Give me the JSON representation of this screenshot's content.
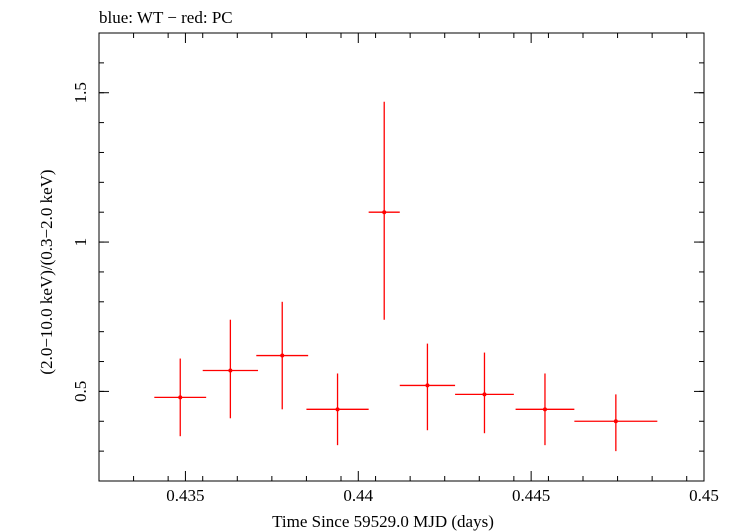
{
  "chart_data": {
    "type": "scatter",
    "title": "blue: WT − red: PC",
    "xlabel": "Time Since 59529.0 MJD (days)",
    "ylabel": "(2.0−10.0 keV)/(0.3−2.0 keV)",
    "xlim": [
      0.4325,
      0.45
    ],
    "ylim": [
      0.2,
      1.7
    ],
    "x_ticks": [
      {
        "value": 0.435,
        "label": "0.435"
      },
      {
        "value": 0.44,
        "label": "0.44"
      },
      {
        "value": 0.445,
        "label": "0.445"
      },
      {
        "value": 0.45,
        "label": "0.45"
      }
    ],
    "y_ticks": [
      {
        "value": 0.5,
        "label": "0.5"
      },
      {
        "value": 1.0,
        "label": "1"
      },
      {
        "value": 1.5,
        "label": "1.5"
      }
    ],
    "series": [
      {
        "color": "#ff0000",
        "points": [
          {
            "x": 0.43485,
            "xlo": 0.4341,
            "xhi": 0.4356,
            "y": 0.48,
            "ylo": 0.35,
            "yhi": 0.61
          },
          {
            "x": 0.4363,
            "xlo": 0.4355,
            "xhi": 0.4371,
            "y": 0.57,
            "ylo": 0.41,
            "yhi": 0.74
          },
          {
            "x": 0.4378,
            "xlo": 0.43705,
            "xhi": 0.43855,
            "y": 0.62,
            "ylo": 0.44,
            "yhi": 0.8
          },
          {
            "x": 0.4394,
            "xlo": 0.4385,
            "xhi": 0.4403,
            "y": 0.44,
            "ylo": 0.32,
            "yhi": 0.56
          },
          {
            "x": 0.44075,
            "xlo": 0.4403,
            "xhi": 0.4412,
            "y": 1.1,
            "ylo": 0.74,
            "yhi": 1.47
          },
          {
            "x": 0.442,
            "xlo": 0.4412,
            "xhi": 0.4428,
            "y": 0.52,
            "ylo": 0.37,
            "yhi": 0.66
          },
          {
            "x": 0.44365,
            "xlo": 0.4428,
            "xhi": 0.4445,
            "y": 0.49,
            "ylo": 0.36,
            "yhi": 0.63
          },
          {
            "x": 0.4454,
            "xlo": 0.44455,
            "xhi": 0.44625,
            "y": 0.44,
            "ylo": 0.32,
            "yhi": 0.56
          },
          {
            "x": 0.44745,
            "xlo": 0.44625,
            "xhi": 0.44865,
            "y": 0.4,
            "ylo": 0.3,
            "yhi": 0.49
          }
        ]
      }
    ]
  }
}
